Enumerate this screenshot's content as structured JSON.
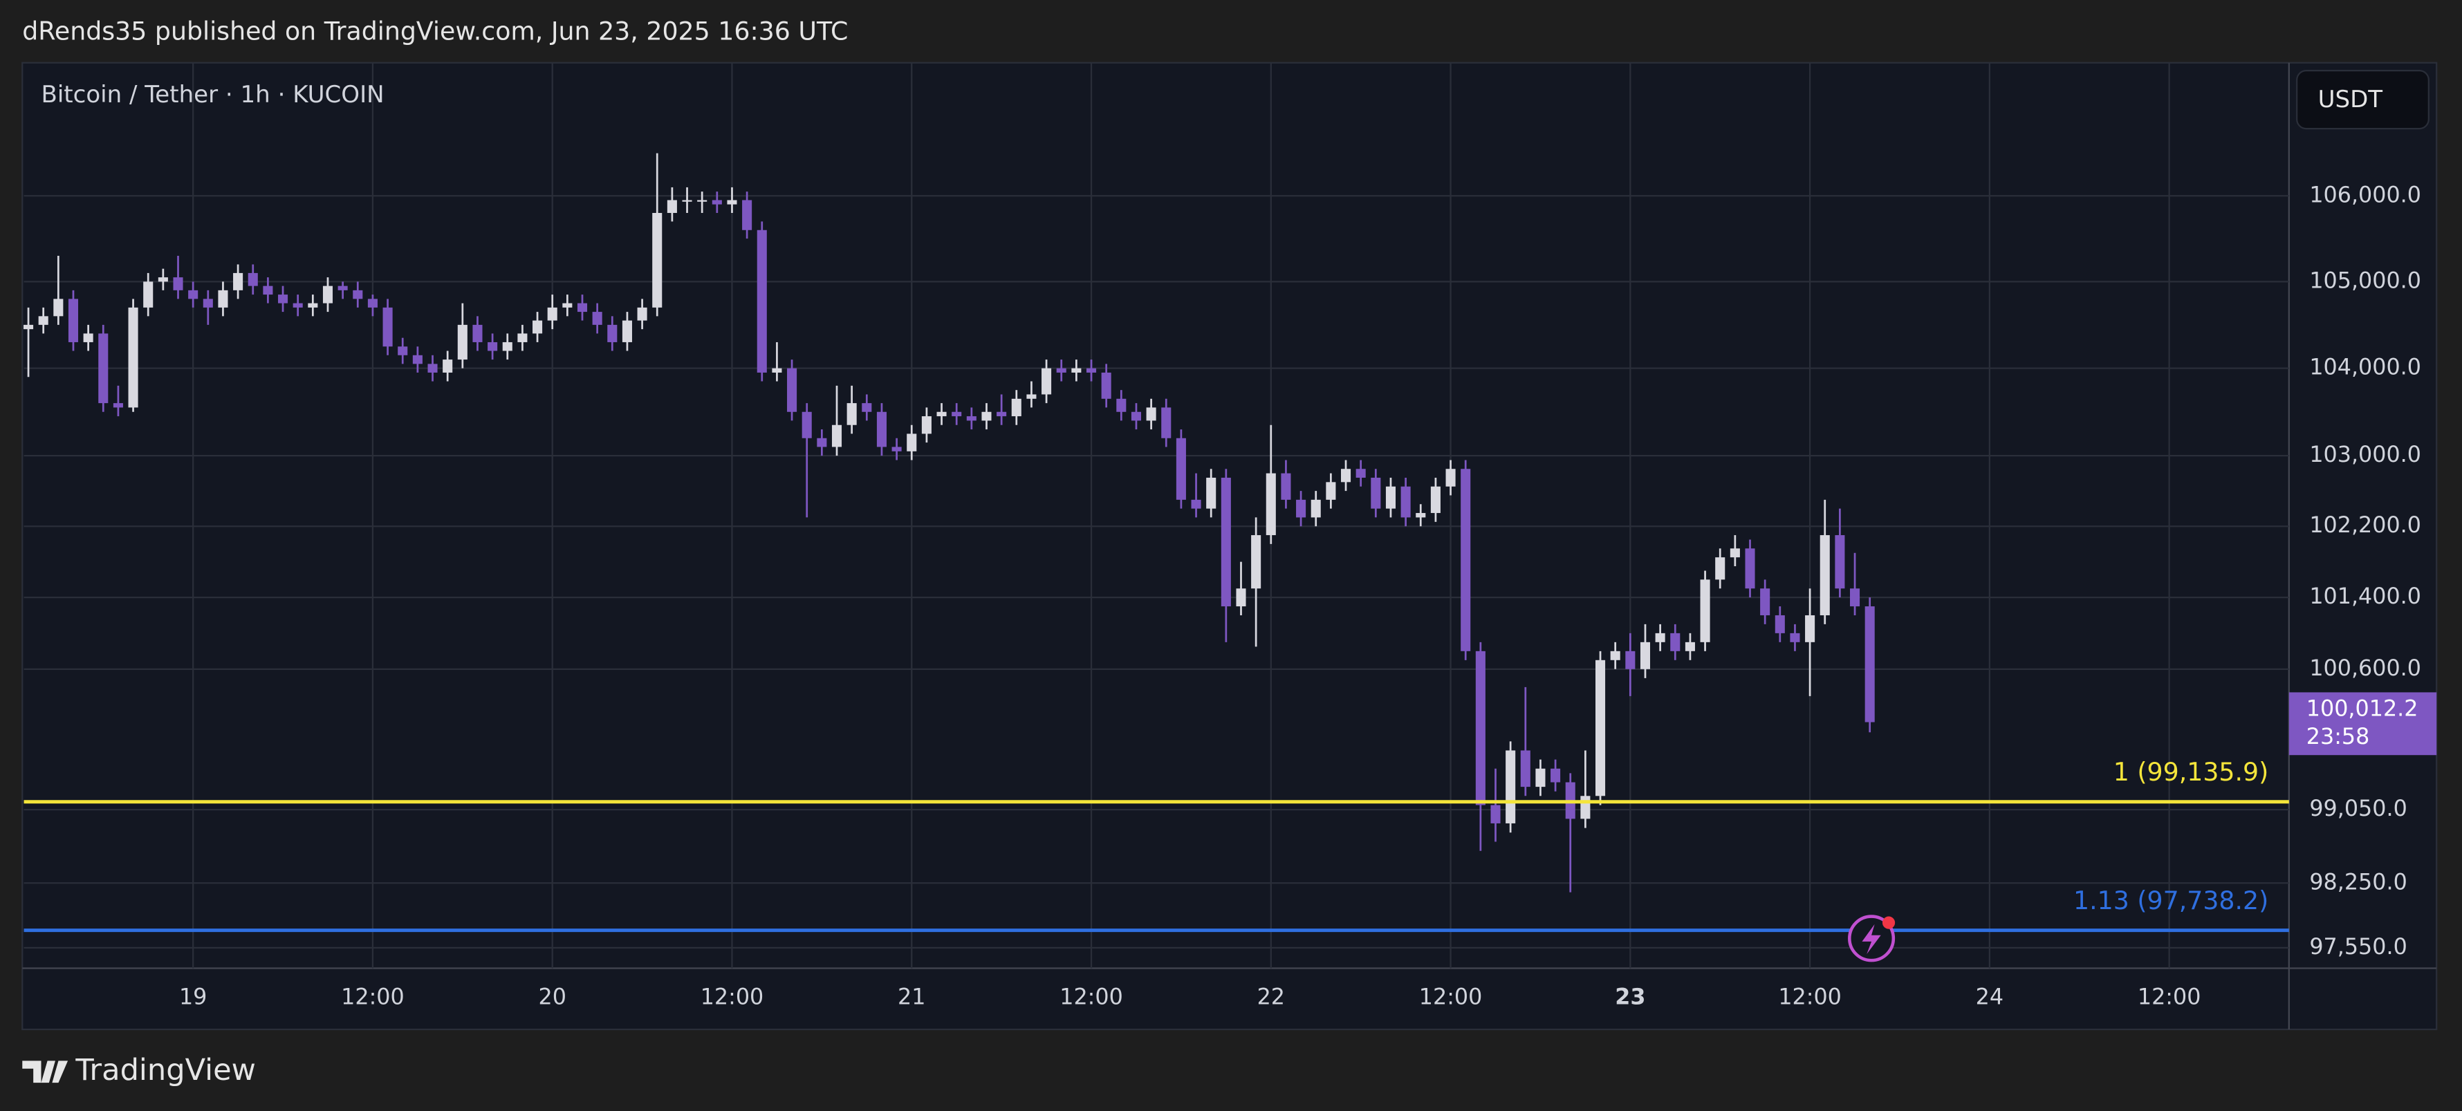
{
  "header": {
    "title": "dRends35 published on TradingView.com, Jun 23, 2025 16:36 UTC"
  },
  "footer": {
    "brand": "TradingView"
  },
  "chart_data": {
    "type": "candlestick",
    "title": "Bitcoin / Tether · 1h · KUCOIN",
    "currency": "USDT",
    "log_scale": true,
    "grid": true,
    "up_color": "#d9d9e0",
    "down_color": "#7e57c2",
    "ylim": [
      97330,
      107570
    ],
    "yticks": [
      {
        "value": 106000,
        "label": "106,000.0"
      },
      {
        "value": 105000,
        "label": "105,000.0"
      },
      {
        "value": 104000,
        "label": "104,000.0"
      },
      {
        "value": 103000,
        "label": "103,000.0"
      },
      {
        "value": 102200,
        "label": "102,200.0"
      },
      {
        "value": 101400,
        "label": "101,400.0"
      },
      {
        "value": 100600,
        "label": "100,600.0"
      },
      {
        "value": 99050,
        "label": "99,050.0"
      },
      {
        "value": 98250,
        "label": "98,250.0"
      },
      {
        "value": 97550,
        "label": "97,550.0"
      }
    ],
    "xlim": [
      -0.3,
      151
    ],
    "xticks": [
      {
        "value": 11,
        "label": "19"
      },
      {
        "value": 23,
        "label": "12:00"
      },
      {
        "value": 35,
        "label": "20"
      },
      {
        "value": 47,
        "label": "12:00"
      },
      {
        "value": 59,
        "label": "21"
      },
      {
        "value": 71,
        "label": "12:00"
      },
      {
        "value": 83,
        "label": "22"
      },
      {
        "value": 95,
        "label": "12:00"
      },
      {
        "value": 107,
        "label": "23",
        "bold": true
      },
      {
        "value": 119,
        "label": "12:00"
      },
      {
        "value": 131,
        "label": "24"
      },
      {
        "value": 143,
        "label": "12:00"
      }
    ],
    "open": [
      104450,
      104500,
      104600,
      104800,
      104300,
      104400,
      103600,
      103550,
      104700,
      105000,
      105050,
      104900,
      104800,
      104700,
      104900,
      105100,
      104950,
      104850,
      104750,
      104700,
      104750,
      104950,
      104900,
      104800,
      104700,
      104250,
      104150,
      104050,
      103950,
      104100,
      104500,
      104300,
      104200,
      104300,
      104400,
      104550,
      104700,
      104750,
      104650,
      104500,
      104300,
      104550,
      104700,
      105800,
      105950,
      105950,
      105950,
      105900,
      105950,
      105600,
      103950,
      104000,
      103500,
      103200,
      103100,
      103350,
      103600,
      103500,
      103100,
      103050,
      103250,
      103450,
      103500,
      103450,
      103400,
      103500,
      103450,
      103650,
      103700,
      104000,
      103950,
      104000,
      103950,
      103650,
      103500,
      103400,
      103550,
      103200,
      102500,
      102400,
      102750,
      101300,
      101500,
      102100,
      102800,
      102500,
      102300,
      102500,
      102700,
      102850,
      102750,
      102400,
      102650,
      102300,
      102350,
      102650,
      102850,
      100800,
      99100,
      98900,
      99700,
      99300,
      99500,
      99350,
      98950,
      99200,
      100700,
      100800,
      100600,
      100900,
      101000,
      100800,
      100900,
      101600,
      101850,
      101950,
      101500,
      101200,
      101000,
      100900,
      101200,
      102100,
      101500,
      101300
    ],
    "high": [
      104700,
      104700,
      105300,
      104900,
      104500,
      104500,
      103800,
      104800,
      105100,
      105150,
      105300,
      105000,
      104900,
      105000,
      105200,
      105200,
      105050,
      104950,
      104850,
      104850,
      105050,
      105000,
      105000,
      104850,
      104800,
      104350,
      104250,
      104150,
      104200,
      104750,
      104600,
      104400,
      104400,
      104500,
      104650,
      104850,
      104850,
      104850,
      104750,
      104600,
      104650,
      104800,
      106500,
      106100,
      106100,
      106050,
      106050,
      106100,
      106050,
      105700,
      104300,
      104100,
      103600,
      103300,
      103800,
      103800,
      103700,
      103600,
      103200,
      103350,
      103550,
      103600,
      103600,
      103550,
      103600,
      103700,
      103750,
      103850,
      104100,
      104100,
      104100,
      104100,
      104050,
      103750,
      103600,
      103650,
      103650,
      103300,
      102800,
      102850,
      102850,
      101800,
      102300,
      103350,
      102950,
      102600,
      102600,
      102800,
      102950,
      102950,
      102850,
      102750,
      102750,
      102450,
      102750,
      102950,
      102950,
      100900,
      99500,
      99800,
      100400,
      99600,
      99600,
      99450,
      99700,
      100800,
      100900,
      101000,
      101100,
      101100,
      101100,
      101000,
      101700,
      101950,
      102100,
      102050,
      101600,
      101300,
      101100,
      101500,
      102500,
      102400,
      101900,
      101400
    ],
    "low": [
      103900,
      104400,
      104500,
      104200,
      104200,
      103500,
      103450,
      103500,
      104600,
      104900,
      104800,
      104700,
      104500,
      104600,
      104800,
      104850,
      104750,
      104650,
      104600,
      104600,
      104650,
      104800,
      104700,
      104600,
      104150,
      104050,
      103950,
      103850,
      103850,
      104000,
      104200,
      104100,
      104100,
      104200,
      104300,
      104450,
      104600,
      104550,
      104400,
      104200,
      104200,
      104450,
      104600,
      105700,
      105800,
      105800,
      105800,
      105800,
      105500,
      103850,
      103850,
      103400,
      102300,
      103000,
      103000,
      103250,
      103400,
      103000,
      102950,
      102950,
      103150,
      103350,
      103350,
      103300,
      103300,
      103350,
      103350,
      103550,
      103600,
      103850,
      103850,
      103850,
      103550,
      103400,
      103300,
      103300,
      103100,
      102400,
      102300,
      102300,
      100900,
      101200,
      100850,
      102000,
      102400,
      102200,
      102200,
      102400,
      102600,
      102650,
      102300,
      102300,
      102200,
      102200,
      102250,
      102550,
      100700,
      98600,
      98700,
      98800,
      99200,
      99200,
      99250,
      98150,
      98850,
      99100,
      100600,
      100300,
      100500,
      100800,
      100700,
      100700,
      100800,
      101500,
      101750,
      101400,
      101100,
      100900,
      100800,
      100300,
      101100,
      101400,
      101200,
      99900
    ],
    "close": [
      104500,
      104600,
      104800,
      104300,
      104400,
      103600,
      103550,
      104700,
      105000,
      105050,
      104900,
      104800,
      104700,
      104900,
      105100,
      104950,
      104850,
      104750,
      104700,
      104750,
      104950,
      104900,
      104800,
      104700,
      104250,
      104150,
      104050,
      103950,
      104100,
      104500,
      104300,
      104200,
      104300,
      104400,
      104550,
      104700,
      104750,
      104650,
      104500,
      104300,
      104550,
      104700,
      105800,
      105950,
      105950,
      105950,
      105900,
      105950,
      105600,
      103950,
      104000,
      103500,
      103200,
      103100,
      103350,
      103600,
      103500,
      103100,
      103050,
      103250,
      103450,
      103500,
      103450,
      103400,
      103500,
      103450,
      103650,
      103700,
      104000,
      103950,
      104000,
      103950,
      103650,
      103500,
      103400,
      103550,
      103200,
      102500,
      102400,
      102750,
      101300,
      101500,
      102100,
      102800,
      102500,
      102300,
      102500,
      102700,
      102850,
      102750,
      102400,
      102650,
      102300,
      102350,
      102650,
      102850,
      100800,
      99100,
      98900,
      99700,
      99300,
      99500,
      99350,
      98950,
      99200,
      100700,
      100800,
      100600,
      100900,
      101000,
      100800,
      100900,
      101600,
      101850,
      101950,
      101500,
      101200,
      101000,
      100900,
      101200,
      102100,
      101500,
      101300,
      100012.2
    ],
    "last_price": {
      "value": 100012.2,
      "label": "100,012.2",
      "countdown": "23:58"
    },
    "levels": [
      {
        "value": 99135.9,
        "label": "1 (99,135.9)",
        "color": "#f5e53b"
      },
      {
        "value": 97738.2,
        "label": "1.13 (97,738.2)",
        "color": "#2f6fe0"
      }
    ]
  }
}
